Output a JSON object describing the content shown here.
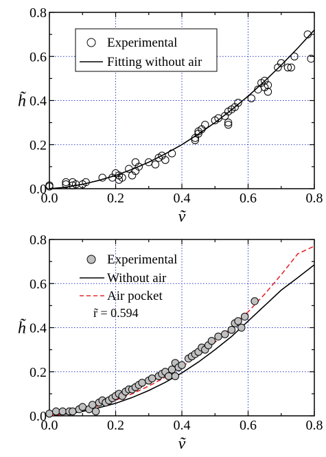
{
  "chart_data": [
    {
      "type": "scatter",
      "xlabel": "ṽ",
      "ylabel": "h̃",
      "xlim": [
        0.0,
        0.8
      ],
      "ylim": [
        0.0,
        0.8
      ],
      "xticks": [
        "0.0",
        "0.2",
        "0.4",
        "0.6",
        "0.8"
      ],
      "yticks": [
        "0.0",
        "0.2",
        "0.4",
        "0.6",
        "0.8"
      ],
      "grid": true,
      "legend_position": "top-left",
      "series": [
        {
          "name": "Experimental",
          "kind": "scatter",
          "marker": "open-circle",
          "points": [
            [
              0.0,
              0.01
            ],
            [
              0.0,
              0.015
            ],
            [
              0.05,
              0.02
            ],
            [
              0.05,
              0.03
            ],
            [
              0.07,
              0.015
            ],
            [
              0.07,
              0.03
            ],
            [
              0.08,
              0.02
            ],
            [
              0.1,
              0.02
            ],
            [
              0.11,
              0.03
            ],
            [
              0.16,
              0.05
            ],
            [
              0.19,
              0.05
            ],
            [
              0.2,
              0.07
            ],
            [
              0.21,
              0.06
            ],
            [
              0.21,
              0.04
            ],
            [
              0.22,
              0.05
            ],
            [
              0.24,
              0.09
            ],
            [
              0.25,
              0.06
            ],
            [
              0.26,
              0.08
            ],
            [
              0.26,
              0.12
            ],
            [
              0.27,
              0.1
            ],
            [
              0.3,
              0.12
            ],
            [
              0.32,
              0.11
            ],
            [
              0.33,
              0.14
            ],
            [
              0.34,
              0.15
            ],
            [
              0.35,
              0.13
            ],
            [
              0.37,
              0.16
            ],
            [
              0.44,
              0.22
            ],
            [
              0.44,
              0.23
            ],
            [
              0.45,
              0.25
            ],
            [
              0.45,
              0.26
            ],
            [
              0.46,
              0.27
            ],
            [
              0.47,
              0.29
            ],
            [
              0.5,
              0.31
            ],
            [
              0.51,
              0.32
            ],
            [
              0.53,
              0.33
            ],
            [
              0.54,
              0.35
            ],
            [
              0.54,
              0.3
            ],
            [
              0.54,
              0.29
            ],
            [
              0.55,
              0.36
            ],
            [
              0.56,
              0.37
            ],
            [
              0.57,
              0.39
            ],
            [
              0.61,
              0.41
            ],
            [
              0.63,
              0.45
            ],
            [
              0.64,
              0.48
            ],
            [
              0.65,
              0.49
            ],
            [
              0.65,
              0.46
            ],
            [
              0.66,
              0.44
            ],
            [
              0.66,
              0.47
            ],
            [
              0.69,
              0.55
            ],
            [
              0.7,
              0.57
            ],
            [
              0.72,
              0.55
            ],
            [
              0.73,
              0.55
            ],
            [
              0.74,
              0.6
            ],
            [
              0.78,
              0.7
            ],
            [
              0.79,
              0.59
            ]
          ]
        },
        {
          "name": "Fitting without air",
          "kind": "line",
          "color": "#000000",
          "dash": "solid",
          "points": [
            [
              0.0,
              0.0
            ],
            [
              0.05,
              0.007
            ],
            [
              0.1,
              0.02
            ],
            [
              0.15,
              0.038
            ],
            [
              0.2,
              0.06
            ],
            [
              0.25,
              0.088
            ],
            [
              0.3,
              0.12
            ],
            [
              0.35,
              0.158
            ],
            [
              0.4,
              0.2
            ],
            [
              0.45,
              0.248
            ],
            [
              0.5,
              0.3
            ],
            [
              0.55,
              0.358
            ],
            [
              0.6,
              0.42
            ],
            [
              0.65,
              0.488
            ],
            [
              0.7,
              0.56
            ],
            [
              0.75,
              0.638
            ],
            [
              0.8,
              0.72
            ]
          ]
        }
      ]
    },
    {
      "type": "scatter",
      "xlabel": "ṽ",
      "ylabel": "h̃",
      "xlim": [
        0.0,
        0.8
      ],
      "ylim": [
        0.0,
        0.8
      ],
      "xticks": [
        "0.0",
        "0.2",
        "0.4",
        "0.6",
        "0.8"
      ],
      "yticks": [
        "0.0",
        "0.2",
        "0.4",
        "0.6",
        "0.8"
      ],
      "grid": true,
      "legend_position": "top-left",
      "annotation": "r̃ = 0.594",
      "series": [
        {
          "name": "Experimental",
          "kind": "scatter",
          "marker": "filled-circle",
          "color": "#c0c0c0",
          "points": [
            [
              0.0,
              0.01
            ],
            [
              0.02,
              0.02
            ],
            [
              0.04,
              0.02
            ],
            [
              0.06,
              0.02
            ],
            [
              0.07,
              0.02
            ],
            [
              0.09,
              0.03
            ],
            [
              0.1,
              0.04
            ],
            [
              0.12,
              0.03
            ],
            [
              0.13,
              0.05
            ],
            [
              0.14,
              0.02
            ],
            [
              0.15,
              0.06
            ],
            [
              0.16,
              0.07
            ],
            [
              0.17,
              0.06
            ],
            [
              0.18,
              0.07
            ],
            [
              0.19,
              0.08
            ],
            [
              0.2,
              0.09
            ],
            [
              0.21,
              0.1
            ],
            [
              0.22,
              0.09
            ],
            [
              0.23,
              0.11
            ],
            [
              0.24,
              0.12
            ],
            [
              0.25,
              0.12
            ],
            [
              0.26,
              0.13
            ],
            [
              0.27,
              0.14
            ],
            [
              0.28,
              0.15
            ],
            [
              0.3,
              0.16
            ],
            [
              0.31,
              0.17
            ],
            [
              0.33,
              0.18
            ],
            [
              0.34,
              0.19
            ],
            [
              0.35,
              0.2
            ],
            [
              0.36,
              0.18
            ],
            [
              0.37,
              0.21
            ],
            [
              0.38,
              0.24
            ],
            [
              0.38,
              0.18
            ],
            [
              0.39,
              0.22
            ],
            [
              0.4,
              0.23
            ],
            [
              0.42,
              0.26
            ],
            [
              0.43,
              0.27
            ],
            [
              0.44,
              0.28
            ],
            [
              0.45,
              0.29
            ],
            [
              0.46,
              0.31
            ],
            [
              0.47,
              0.3
            ],
            [
              0.48,
              0.32
            ],
            [
              0.49,
              0.34
            ],
            [
              0.51,
              0.36
            ],
            [
              0.53,
              0.37
            ],
            [
              0.55,
              0.39
            ],
            [
              0.56,
              0.42
            ],
            [
              0.57,
              0.43
            ],
            [
              0.58,
              0.4
            ],
            [
              0.59,
              0.45
            ],
            [
              0.62,
              0.52
            ]
          ]
        },
        {
          "name": "Without air",
          "kind": "line",
          "color": "#000000",
          "dash": "solid",
          "points": [
            [
              0.0,
              0.0
            ],
            [
              0.05,
              0.008
            ],
            [
              0.1,
              0.02
            ],
            [
              0.15,
              0.037
            ],
            [
              0.2,
              0.057
            ],
            [
              0.25,
              0.083
            ],
            [
              0.3,
              0.115
            ],
            [
              0.35,
              0.152
            ],
            [
              0.4,
              0.195
            ],
            [
              0.45,
              0.244
            ],
            [
              0.5,
              0.3
            ],
            [
              0.55,
              0.36
            ],
            [
              0.6,
              0.43
            ],
            [
              0.65,
              0.5
            ],
            [
              0.7,
              0.57
            ],
            [
              0.75,
              0.627
            ],
            [
              0.8,
              0.685
            ]
          ]
        },
        {
          "name": "Air pocket",
          "kind": "line",
          "color": "#e8262a",
          "dash": "dashed",
          "points": [
            [
              0.0,
              0.0
            ],
            [
              0.05,
              0.01
            ],
            [
              0.1,
              0.026
            ],
            [
              0.15,
              0.046
            ],
            [
              0.2,
              0.071
            ],
            [
              0.25,
              0.1
            ],
            [
              0.3,
              0.135
            ],
            [
              0.35,
              0.175
            ],
            [
              0.4,
              0.222
            ],
            [
              0.45,
              0.275
            ],
            [
              0.5,
              0.334
            ],
            [
              0.55,
              0.4
            ],
            [
              0.6,
              0.472
            ],
            [
              0.65,
              0.552
            ],
            [
              0.7,
              0.64
            ],
            [
              0.75,
              0.735
            ],
            [
              0.8,
              0.77
            ]
          ]
        }
      ]
    }
  ],
  "colors": {
    "grid": "#2a38c8",
    "axis": "#000000",
    "marker_fill_gray": "#c0c0c0",
    "air_pocket": "#e8262a"
  }
}
